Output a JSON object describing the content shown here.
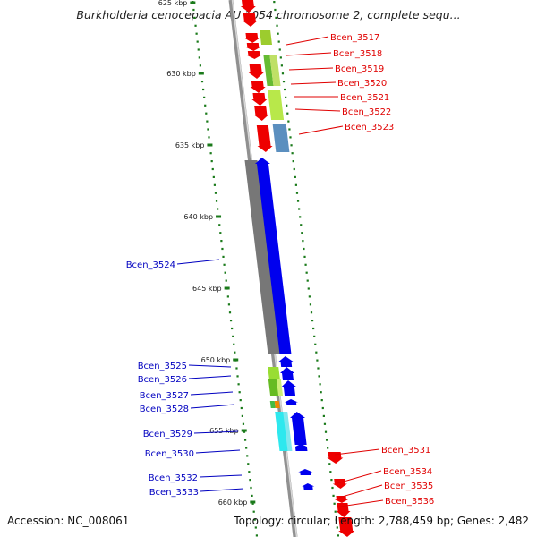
{
  "title": "Burkholderia cenocepacia AU 1054 chromosome 2, complete sequ...",
  "footer": {
    "accession": "Accession: NC_008061",
    "summary": "Topology: circular; Length: 2,788,459 bp; Genes: 2,482"
  },
  "colors": {
    "forward_label": "#e00000",
    "reverse_label": "#0000c0",
    "red_gene": "#ee0000",
    "blue_gene": "#0000ee",
    "backbone": "#909090",
    "tick": "#1a7a1a"
  },
  "kbp_ticks": [
    "625 kbp",
    "630 kbp",
    "635 kbp",
    "640 kbp",
    "645 kbp",
    "650 kbp",
    "655 kbp",
    "660 kbp"
  ],
  "forward_labels": [
    "Bcen_3517",
    "Bcen_3518",
    "Bcen_3519",
    "Bcen_3520",
    "Bcen_3521",
    "Bcen_3522",
    "Bcen_3523",
    "Bcen_3531",
    "Bcen_3534",
    "Bcen_3535",
    "Bcen_3536"
  ],
  "reverse_labels": [
    "Bcen_3524",
    "Bcen_3525",
    "Bcen_3526",
    "Bcen_3527",
    "Bcen_3528",
    "Bcen_3529",
    "Bcen_3530",
    "Bcen_3532",
    "Bcen_3533"
  ]
}
